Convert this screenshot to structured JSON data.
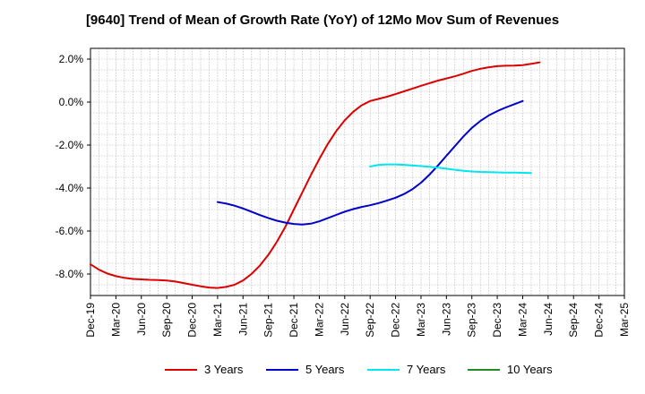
{
  "chart_data": {
    "type": "line",
    "title": "[9640]  Trend of Mean of Growth Rate (YoY) of 12Mo Mov Sum of Revenues",
    "xlabel": "",
    "ylabel": "",
    "ylim": [
      -9.0,
      2.5
    ],
    "y_ticks": [
      2.0,
      0.0,
      -2.0,
      -4.0,
      -6.0,
      -8.0
    ],
    "y_tick_labels": [
      "2.0%",
      "0.0%",
      "-2.0%",
      "-4.0%",
      "-6.0%",
      "-8.0%"
    ],
    "x_tick_labels": [
      "Dec-19",
      "Mar-20",
      "Jun-20",
      "Sep-20",
      "Dec-20",
      "Mar-21",
      "Jun-21",
      "Sep-21",
      "Dec-21",
      "Mar-22",
      "Jun-22",
      "Sep-22",
      "Dec-22",
      "Mar-23",
      "Jun-23",
      "Sep-23",
      "Dec-23",
      "Mar-24",
      "Jun-24",
      "Sep-24",
      "Dec-24",
      "Mar-25"
    ],
    "grid": true,
    "legend_position": "bottom",
    "series": [
      {
        "name": "3 Years",
        "color": "#dd0000",
        "start_index": 0,
        "values": [
          -7.55,
          -7.8,
          -7.98,
          -8.1,
          -8.18,
          -8.23,
          -8.25,
          -8.27,
          -8.28,
          -8.3,
          -8.35,
          -8.42,
          -8.5,
          -8.57,
          -8.63,
          -8.65,
          -8.6,
          -8.5,
          -8.3,
          -8.0,
          -7.6,
          -7.1,
          -6.5,
          -5.8,
          -5.0,
          -4.2,
          -3.4,
          -2.65,
          -1.95,
          -1.35,
          -0.85,
          -0.45,
          -0.15,
          0.05,
          0.15,
          0.25,
          0.37,
          0.5,
          0.63,
          0.76,
          0.88,
          1.0,
          1.1,
          1.2,
          1.32,
          1.45,
          1.55,
          1.62,
          1.67,
          1.69,
          1.7,
          1.72,
          1.78,
          1.85
        ]
      },
      {
        "name": "5 Years",
        "color": "#0000cc",
        "start_index": 15,
        "values": [
          -4.65,
          -4.72,
          -4.82,
          -4.95,
          -5.1,
          -5.26,
          -5.4,
          -5.52,
          -5.61,
          -5.67,
          -5.7,
          -5.66,
          -5.55,
          -5.4,
          -5.25,
          -5.1,
          -4.98,
          -4.88,
          -4.8,
          -4.7,
          -4.58,
          -4.45,
          -4.28,
          -4.05,
          -3.75,
          -3.38,
          -2.95,
          -2.5,
          -2.05,
          -1.6,
          -1.2,
          -0.88,
          -0.62,
          -0.42,
          -0.25,
          -0.1,
          0.05
        ]
      },
      {
        "name": "7 Years",
        "color": "#00e5ee",
        "start_index": 33,
        "values": [
          -3.0,
          -2.92,
          -2.9,
          -2.9,
          -2.92,
          -2.95,
          -2.98,
          -3.01,
          -3.05,
          -3.1,
          -3.15,
          -3.2,
          -3.23,
          -3.25,
          -3.26,
          -3.27,
          -3.28,
          -3.28,
          -3.29,
          -3.3
        ]
      },
      {
        "name": "10 Years",
        "color": "#228b22",
        "start_index": 0,
        "values": []
      }
    ]
  }
}
